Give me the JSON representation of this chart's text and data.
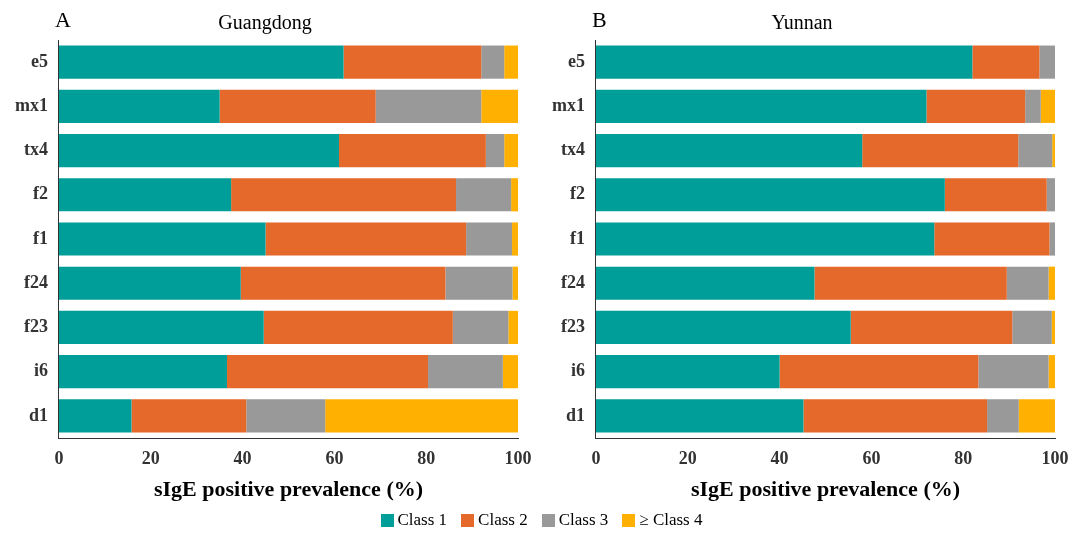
{
  "chart_data": [
    {
      "type": "bar",
      "orientation": "horizontal",
      "stacked": true,
      "title": "Guangdong",
      "annotations": [
        "A"
      ],
      "xlabel": "sIgE positive prevalence (%)",
      "categories": [
        "e5",
        "mx1",
        "tx4",
        "f2",
        "f1",
        "f24",
        "f23",
        "i6",
        "d1"
      ],
      "xlim": [
        0,
        100
      ],
      "xticks": [
        0,
        20,
        40,
        60,
        80,
        100
      ],
      "grid": false,
      "legend": "bottom",
      "series": [
        {
          "name": "Class 1",
          "color": "#009e99",
          "values": [
            62,
            35,
            61,
            37.5,
            45,
            39.6,
            44.6,
            36.6,
            15.8
          ]
        },
        {
          "name": "Class 2",
          "color": "#e5692a",
          "values": [
            30,
            34,
            32,
            49,
            43.7,
            44.6,
            41.2,
            43.8,
            25
          ]
        },
        {
          "name": "Class 3",
          "color": "#999999",
          "values": [
            5,
            23,
            4,
            12,
            10,
            14.6,
            12.1,
            16.3,
            17.2
          ]
        },
        {
          "name": "≥ Class 4",
          "color": "#ffb000",
          "values": [
            3,
            8,
            3,
            1.5,
            1.3,
            1.2,
            2.1,
            3.3,
            42
          ]
        }
      ]
    },
    {
      "type": "bar",
      "orientation": "horizontal",
      "stacked": true,
      "title": "Yunnan",
      "annotations": [
        "B"
      ],
      "xlabel": "sIgE positive prevalence (%)",
      "categories": [
        "e5",
        "mx1",
        "tx4",
        "f2",
        "f1",
        "f24",
        "f23",
        "i6",
        "d1"
      ],
      "xlim": [
        0,
        100
      ],
      "xticks": [
        0,
        20,
        40,
        60,
        80,
        100
      ],
      "grid": false,
      "series": [
        {
          "color": "#009e99",
          "values": [
            82,
            72,
            58,
            76,
            73.7,
            47.6,
            55.5,
            40,
            45.2
          ]
        },
        {
          "color": "#e5692a",
          "values": [
            14.6,
            21.5,
            34,
            22.2,
            25.1,
            41.9,
            35.2,
            43.3,
            40
          ]
        },
        {
          "color": "#999999",
          "values": [
            3.4,
            3.4,
            7.4,
            1.8,
            1.2,
            9.1,
            8.6,
            15.3,
            6.9
          ]
        },
        {
          "color": "#ffb000",
          "values": [
            0,
            3.1,
            0.6,
            0,
            0,
            1.4,
            0.7,
            1.4,
            7.9
          ]
        }
      ]
    }
  ]
}
